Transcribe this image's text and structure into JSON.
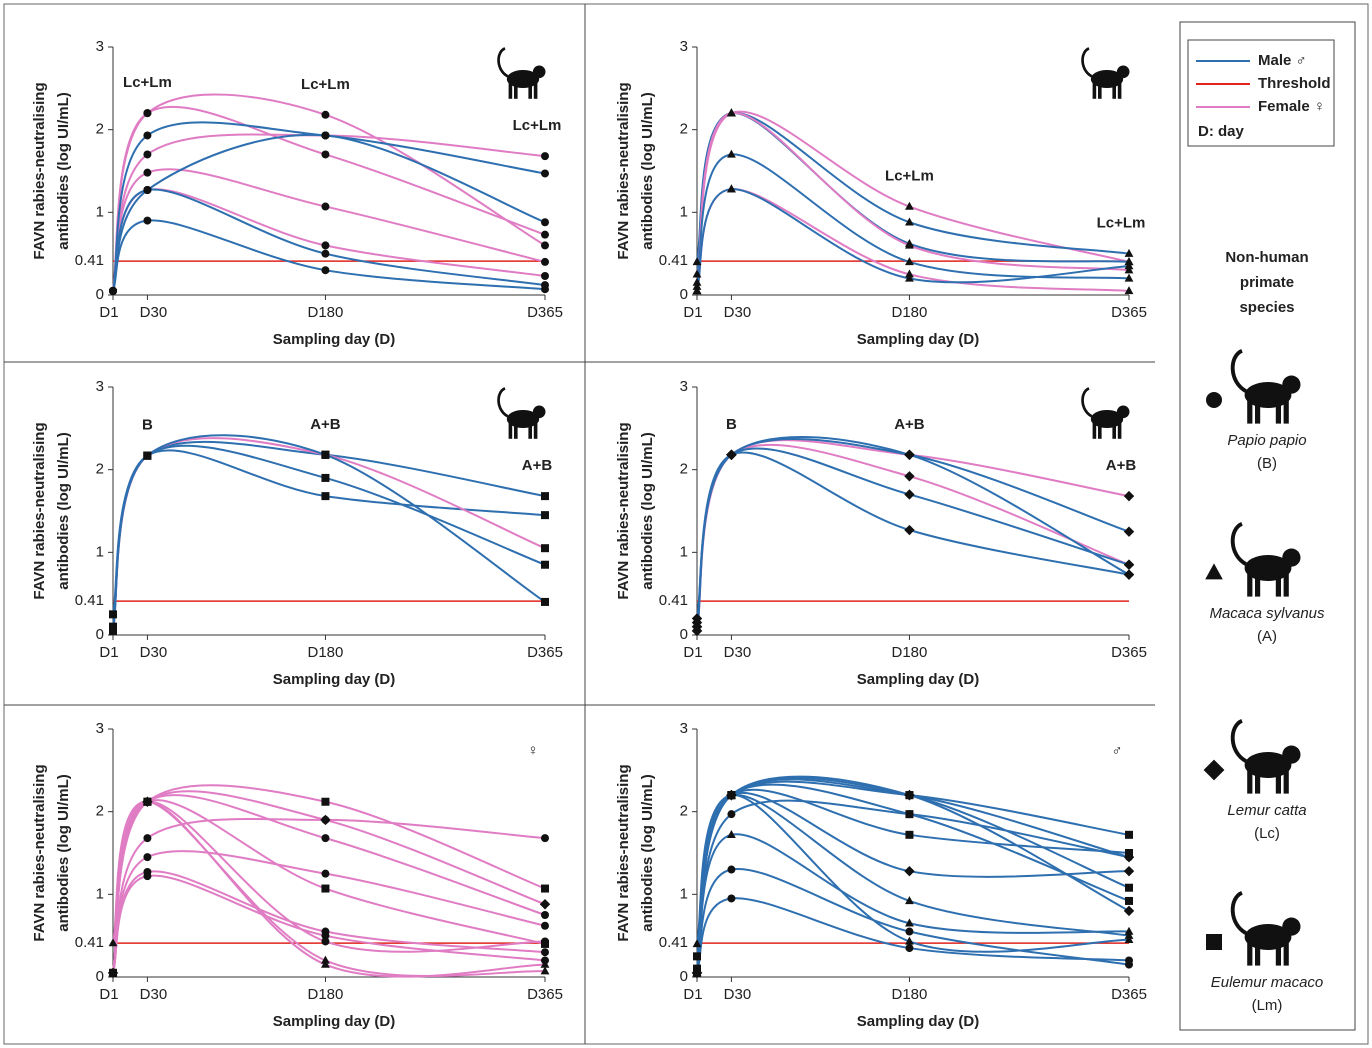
{
  "chart_data": [
    {
      "type": "line",
      "xlabel": "Sampling day (D)",
      "ylabel": [
        "FAVN rabies-neutralising",
        "antibodies (log UI/mL)"
      ],
      "x": [
        1,
        30,
        180,
        365
      ],
      "xlim": [
        1,
        365
      ],
      "xticks": [
        {
          "value": 1,
          "label": "D1"
        },
        {
          "value": 30,
          "label": "D30"
        },
        {
          "value": 180,
          "label": "D180"
        },
        {
          "value": 365,
          "label": "D365"
        }
      ],
      "ylim": [
        0,
        3
      ],
      "yticks": [
        0,
        1,
        2,
        3
      ],
      "threshold": 0.41,
      "annotations": [
        {
          "text": "Lc+Lm",
          "x": 30
        },
        {
          "text": "Lc+Lm",
          "x": 180
        },
        {
          "text": "Lc+Lm",
          "x": 365
        }
      ],
      "series": [
        {
          "color": "#e07cc4",
          "marker": "circle",
          "values": [
            0.05,
            2.2,
            2.18,
            0.6
          ]
        },
        {
          "color": "#e07cc4",
          "marker": "circle",
          "values": [
            0.05,
            1.7,
            1.93,
            1.68
          ]
        },
        {
          "color": "#e07cc4",
          "marker": "circle",
          "values": [
            0.05,
            2.2,
            1.7,
            0.73
          ]
        },
        {
          "color": "#e07cc4",
          "marker": "circle",
          "values": [
            0.05,
            1.48,
            1.07,
            0.4
          ]
        },
        {
          "color": "#e07cc4",
          "marker": "circle",
          "values": [
            0.05,
            1.27,
            0.6,
            0.23
          ]
        },
        {
          "color": "#2e6fb0",
          "marker": "circle",
          "values": [
            0.05,
            1.93,
            1.93,
            1.47
          ]
        },
        {
          "color": "#2e6fb0",
          "marker": "circle",
          "values": [
            0.05,
            1.27,
            1.93,
            0.88
          ]
        },
        {
          "color": "#2e6fb0",
          "marker": "circle",
          "values": [
            0.05,
            1.27,
            0.5,
            0.12
          ]
        },
        {
          "color": "#2e6fb0",
          "marker": "circle",
          "values": [
            0.05,
            0.9,
            0.3,
            0.07
          ]
        }
      ]
    },
    {
      "type": "line",
      "xlabel": "Sampling day (D)",
      "ylabel": [
        "FAVN rabies-neutralising",
        "antibodies (log UI/mL)"
      ],
      "x": [
        1,
        30,
        180,
        365
      ],
      "xlim": [
        1,
        365
      ],
      "xticks": [
        {
          "value": 1,
          "label": "D1"
        },
        {
          "value": 30,
          "label": "D30"
        },
        {
          "value": 180,
          "label": "D180"
        },
        {
          "value": 365,
          "label": "D365"
        }
      ],
      "ylim": [
        0,
        3
      ],
      "yticks": [
        0,
        1,
        2,
        3
      ],
      "threshold": 0.41,
      "annotations": [
        {
          "text": "Lc+Lm",
          "x": 180
        },
        {
          "text": "Lc+Lm",
          "x": 365
        }
      ],
      "series": [
        {
          "color": "#e07cc4",
          "marker": "triangle",
          "values": [
            0.05,
            2.2,
            1.07,
            0.4
          ]
        },
        {
          "color": "#2e6fb0",
          "marker": "triangle",
          "values": [
            0.4,
            2.2,
            0.88,
            0.5
          ]
        },
        {
          "color": "#2e6fb0",
          "marker": "triangle",
          "values": [
            0.25,
            2.2,
            0.62,
            0.4
          ]
        },
        {
          "color": "#e07cc4",
          "marker": "triangle",
          "values": [
            0.1,
            2.2,
            0.6,
            0.3
          ]
        },
        {
          "color": "#2e6fb0",
          "marker": "triangle",
          "values": [
            0.15,
            1.7,
            0.4,
            0.2
          ]
        },
        {
          "color": "#e07cc4",
          "marker": "triangle",
          "values": [
            0.05,
            1.28,
            0.25,
            0.05
          ]
        },
        {
          "color": "#2e6fb0",
          "marker": "triangle",
          "values": [
            0.05,
            1.28,
            0.2,
            0.35
          ]
        }
      ]
    },
    {
      "type": "line",
      "xlabel": "Sampling day (D)",
      "ylabel": [
        "FAVN rabies-neutralising",
        "antibodies (log UI/mL)"
      ],
      "x": [
        1,
        30,
        180,
        365
      ],
      "xlim": [
        1,
        365
      ],
      "xticks": [
        {
          "value": 1,
          "label": "D1"
        },
        {
          "value": 30,
          "label": "D30"
        },
        {
          "value": 180,
          "label": "D180"
        },
        {
          "value": 365,
          "label": "D365"
        }
      ],
      "ylim": [
        0,
        3
      ],
      "yticks": [
        0,
        1,
        2,
        3
      ],
      "threshold": 0.41,
      "annotations": [
        {
          "text": "B",
          "x": 30
        },
        {
          "text": "A+B",
          "x": 180
        },
        {
          "text": "A+B",
          "x": 365
        }
      ],
      "series": [
        {
          "color": "#2e6fb0",
          "marker": "square",
          "values": [
            0.25,
            2.17,
            2.18,
            1.68
          ]
        },
        {
          "color": "#2e6fb0",
          "marker": "square",
          "values": [
            0.1,
            2.17,
            1.68,
            1.45
          ]
        },
        {
          "color": "#e07cc4",
          "marker": "square",
          "values": [
            0.05,
            2.17,
            2.18,
            1.05
          ]
        },
        {
          "color": "#2e6fb0",
          "marker": "square",
          "values": [
            0.05,
            2.17,
            1.9,
            0.85
          ]
        },
        {
          "color": "#2e6fb0",
          "marker": "square",
          "values": [
            0.1,
            2.17,
            2.18,
            0.4
          ]
        }
      ]
    },
    {
      "type": "line",
      "xlabel": "Sampling day (D)",
      "ylabel": [
        "FAVN rabies-neutralising",
        "antibodies (log UI/mL)"
      ],
      "x": [
        1,
        30,
        180,
        365
      ],
      "xlim": [
        1,
        365
      ],
      "xticks": [
        {
          "value": 1,
          "label": "D1"
        },
        {
          "value": 30,
          "label": "D30"
        },
        {
          "value": 180,
          "label": "D180"
        },
        {
          "value": 365,
          "label": "D365"
        }
      ],
      "ylim": [
        0,
        3
      ],
      "yticks": [
        0,
        1,
        2,
        3
      ],
      "threshold": 0.41,
      "annotations": [
        {
          "text": "B",
          "x": 30
        },
        {
          "text": "A+B",
          "x": 180
        },
        {
          "text": "A+B",
          "x": 365
        }
      ],
      "series": [
        {
          "color": "#e07cc4",
          "marker": "diamond",
          "values": [
            0.05,
            2.18,
            2.18,
            1.68
          ]
        },
        {
          "color": "#2e6fb0",
          "marker": "diamond",
          "values": [
            0.15,
            2.18,
            2.18,
            1.25
          ]
        },
        {
          "color": "#e07cc4",
          "marker": "diamond",
          "values": [
            0.1,
            2.18,
            1.92,
            0.85
          ]
        },
        {
          "color": "#2e6fb0",
          "marker": "diamond",
          "values": [
            0.05,
            2.18,
            1.7,
            0.85
          ]
        },
        {
          "color": "#2e6fb0",
          "marker": "diamond",
          "values": [
            0.1,
            2.18,
            1.27,
            0.73
          ]
        },
        {
          "color": "#2e6fb0",
          "marker": "diamond",
          "values": [
            0.2,
            2.18,
            2.18,
            0.73
          ]
        }
      ]
    },
    {
      "type": "line",
      "xlabel": "Sampling day (D)",
      "ylabel": [
        "FAVN rabies-neutralising",
        "antibodies (log UI/mL)"
      ],
      "x": [
        1,
        30,
        180,
        365
      ],
      "xlim": [
        1,
        365
      ],
      "xticks": [
        {
          "value": 1,
          "label": "D1"
        },
        {
          "value": 30,
          "label": "D30"
        },
        {
          "value": 180,
          "label": "D180"
        },
        {
          "value": 365,
          "label": "D365"
        }
      ],
      "ylim": [
        0,
        3
      ],
      "yticks": [
        0,
        1,
        2,
        3
      ],
      "threshold": 0.41,
      "symbol": "♀",
      "series": [
        {
          "color": "#e07cc4",
          "marker": "square",
          "values": [
            0.05,
            2.12,
            2.12,
            1.07
          ]
        },
        {
          "color": "#e07cc4",
          "marker": "circle",
          "values": [
            0.05,
            1.68,
            1.9,
            1.68
          ]
        },
        {
          "color": "#e07cc4",
          "marker": "circle",
          "values": [
            0.05,
            2.12,
            1.68,
            0.75
          ]
        },
        {
          "color": "#e07cc4",
          "marker": "circle",
          "values": [
            0.05,
            1.45,
            1.25,
            0.62
          ]
        },
        {
          "color": "#e07cc4",
          "marker": "square",
          "values": [
            0.05,
            2.12,
            1.07,
            0.4
          ]
        },
        {
          "color": "#e07cc4",
          "marker": "circle",
          "values": [
            0.05,
            1.27,
            0.55,
            0.3
          ]
        },
        {
          "color": "#e07cc4",
          "marker": "circle",
          "values": [
            0.05,
            1.22,
            0.5,
            0.2
          ]
        },
        {
          "color": "#e07cc4",
          "marker": "triangle",
          "values": [
            0.41,
            2.12,
            0.2,
            0.07
          ]
        },
        {
          "color": "#e07cc4",
          "marker": "triangle",
          "values": [
            0.05,
            2.12,
            0.15,
            0.15
          ]
        },
        {
          "color": "#e07cc4",
          "marker": "diamond",
          "values": [
            0.05,
            2.12,
            1.9,
            0.88
          ]
        },
        {
          "color": "#e07cc4",
          "marker": "circle",
          "values": [
            0.05,
            2.12,
            0.43,
            0.43
          ]
        }
      ]
    },
    {
      "type": "line",
      "xlabel": "Sampling day (D)",
      "ylabel": [
        "FAVN rabies-neutralising",
        "antibodies (log UI/mL)"
      ],
      "x": [
        1,
        30,
        180,
        365
      ],
      "xlim": [
        1,
        365
      ],
      "xticks": [
        {
          "value": 1,
          "label": "D1"
        },
        {
          "value": 30,
          "label": "D30"
        },
        {
          "value": 180,
          "label": "D180"
        },
        {
          "value": 365,
          "label": "D365"
        }
      ],
      "ylim": [
        0,
        3
      ],
      "yticks": [
        0,
        1,
        2,
        3
      ],
      "threshold": 0.41,
      "symbol": "♂",
      "series": [
        {
          "color": "#2e6fb0",
          "marker": "square",
          "values": [
            0.25,
            2.2,
            2.2,
            1.72
          ]
        },
        {
          "color": "#2e6fb0",
          "marker": "square",
          "values": [
            0.1,
            2.2,
            1.72,
            1.5
          ]
        },
        {
          "color": "#2e6fb0",
          "marker": "diamond",
          "values": [
            0.05,
            2.2,
            2.2,
            1.45
          ]
        },
        {
          "color": "#2e6fb0",
          "marker": "diamond",
          "values": [
            0.05,
            2.2,
            1.28,
            1.28
          ]
        },
        {
          "color": "#2e6fb0",
          "marker": "square",
          "values": [
            0.05,
            2.2,
            2.2,
            1.08
          ]
        },
        {
          "color": "#2e6fb0",
          "marker": "square",
          "values": [
            0.1,
            2.2,
            1.97,
            0.92
          ]
        },
        {
          "color": "#2e6fb0",
          "marker": "diamond",
          "values": [
            0.05,
            2.2,
            2.2,
            0.8
          ]
        },
        {
          "color": "#2e6fb0",
          "marker": "circle",
          "values": [
            0.05,
            1.97,
            1.97,
            1.45
          ]
        },
        {
          "color": "#2e6fb0",
          "marker": "triangle",
          "values": [
            0.4,
            2.2,
            0.92,
            0.5
          ]
        },
        {
          "color": "#2e6fb0",
          "marker": "triangle",
          "values": [
            0.05,
            1.72,
            0.65,
            0.55
          ]
        },
        {
          "color": "#2e6fb0",
          "marker": "circle",
          "values": [
            0.05,
            1.3,
            0.55,
            0.15
          ]
        },
        {
          "color": "#2e6fb0",
          "marker": "circle",
          "values": [
            0.05,
            0.95,
            0.35,
            0.2
          ]
        },
        {
          "color": "#2e6fb0",
          "marker": "triangle",
          "values": [
            0.05,
            2.2,
            0.43,
            0.45
          ]
        }
      ]
    }
  ],
  "legend": {
    "items": [
      {
        "label": "Male ♂",
        "color": "#2e6fb0"
      },
      {
        "label": "Threshold",
        "color": "#e0231c"
      },
      {
        "label": "Female ♀",
        "color": "#e07cc4"
      }
    ],
    "note": "D: day"
  },
  "species_panel": {
    "heading": [
      "Non-human",
      "primate",
      "species"
    ],
    "species": [
      {
        "name": "Papio papio",
        "code": "(B)",
        "marker": "circle"
      },
      {
        "name": "Macaca sylvanus",
        "code": "(A)",
        "marker": "triangle"
      },
      {
        "name": "Lemur catta",
        "code": "(Lc)",
        "marker": "diamond"
      },
      {
        "name": "Eulemur macaco",
        "code": "(Lm)",
        "marker": "square"
      }
    ]
  }
}
